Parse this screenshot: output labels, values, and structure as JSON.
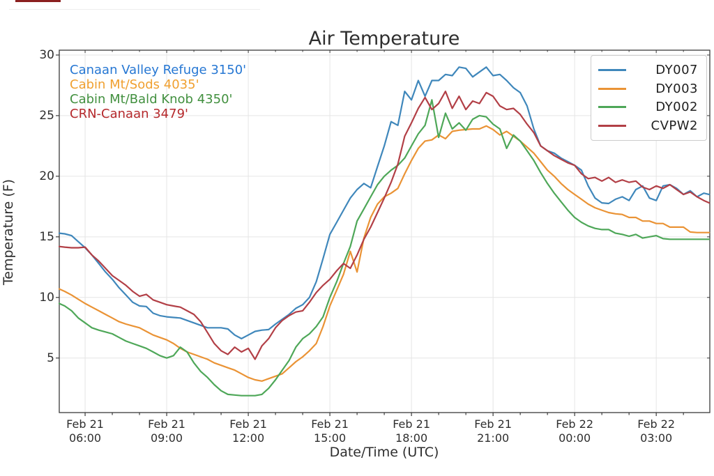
{
  "decor": {
    "top_bar_color": "#8b2020",
    "hairline_color": "#ededed"
  },
  "chart_data": {
    "type": "line",
    "title": "Air Temperature",
    "xlabel": "Date/Time (UTC)",
    "ylabel": "Temperature (F)",
    "x_unit": "hours after Feb 21 00:00 UTC",
    "xlim": [
      5.05,
      28.97
    ],
    "ylim": [
      0.5,
      30.4
    ],
    "grid": true,
    "legend_position": "upper right",
    "x": [
      5.05,
      5.25,
      5.5,
      5.75,
      6,
      6.25,
      6.5,
      6.75,
      7,
      7.25,
      7.5,
      7.75,
      8,
      8.25,
      8.5,
      8.75,
      9,
      9.25,
      9.5,
      9.75,
      10,
      10.25,
      10.5,
      10.75,
      11,
      11.25,
      11.5,
      11.75,
      12,
      12.25,
      12.5,
      12.75,
      13,
      13.25,
      13.5,
      13.75,
      14,
      14.25,
      14.5,
      14.75,
      15,
      15.25,
      15.5,
      15.75,
      16,
      16.25,
      16.5,
      16.75,
      17,
      17.25,
      17.5,
      17.75,
      18,
      18.25,
      18.5,
      18.75,
      19,
      19.25,
      19.5,
      19.75,
      20,
      20.25,
      20.5,
      20.75,
      21,
      21.25,
      21.5,
      21.75,
      22,
      22.25,
      22.5,
      22.75,
      23,
      23.25,
      23.5,
      23.75,
      24,
      24.25,
      24.5,
      24.75,
      25,
      25.25,
      25.5,
      25.75,
      26,
      26.25,
      26.5,
      26.75,
      27,
      27.25,
      27.5,
      27.75,
      28,
      28.25,
      28.5,
      28.75,
      28.95
    ],
    "series": [
      {
        "name": "DY007",
        "station": "Canaan Valley Refuge 3150'",
        "color": "#3f87bb",
        "values": [
          15.3,
          15.25,
          15.1,
          14.6,
          14.1,
          13.5,
          12.8,
          12.1,
          11.5,
          10.8,
          10.2,
          9.6,
          9.3,
          9.25,
          8.7,
          8.5,
          8.4,
          8.35,
          8.3,
          8.1,
          7.9,
          7.7,
          7.5,
          7.5,
          7.5,
          7.4,
          6.9,
          6.6,
          6.9,
          7.2,
          7.3,
          7.35,
          7.8,
          8.2,
          8.6,
          9.1,
          9.4,
          10.0,
          11.3,
          13.2,
          15.2,
          16.2,
          17.2,
          18.2,
          18.9,
          19.4,
          19.05,
          20.8,
          22.5,
          24.5,
          24.2,
          27.0,
          26.3,
          27.9,
          26.6,
          27.9,
          27.9,
          28.4,
          28.3,
          29.0,
          28.9,
          28.2,
          28.6,
          29.0,
          28.3,
          28.4,
          27.9,
          27.3,
          26.9,
          25.8,
          23.9,
          22.5,
          22.1,
          21.9,
          21.5,
          21.2,
          20.9,
          20.5,
          19.2,
          18.2,
          17.8,
          17.75,
          18.1,
          18.3,
          18.0,
          18.9,
          19.2,
          18.2,
          18.0,
          19.2,
          19.3,
          19.0,
          18.5,
          18.8,
          18.3,
          18.6,
          18.5
        ]
      },
      {
        "name": "DY003",
        "station": "Cabin Mt/Sods 4035'",
        "color": "#ea9335",
        "values": [
          10.7,
          10.5,
          10.2,
          9.85,
          9.5,
          9.2,
          8.9,
          8.6,
          8.3,
          8.0,
          7.8,
          7.65,
          7.5,
          7.2,
          6.9,
          6.7,
          6.5,
          6.2,
          5.8,
          5.5,
          5.3,
          5.1,
          4.9,
          4.6,
          4.4,
          4.2,
          4.0,
          3.7,
          3.4,
          3.2,
          3.1,
          3.3,
          3.5,
          3.7,
          4.2,
          4.7,
          5.1,
          5.6,
          6.2,
          7.6,
          9.3,
          10.6,
          11.9,
          13.8,
          12.1,
          14.9,
          16.6,
          17.7,
          18.3,
          18.6,
          19.0,
          20.2,
          21.3,
          22.3,
          22.9,
          23.0,
          23.4,
          23.1,
          23.7,
          23.8,
          23.85,
          23.9,
          23.9,
          24.15,
          23.85,
          23.4,
          23.7,
          23.3,
          22.9,
          22.4,
          21.9,
          21.2,
          20.5,
          20.0,
          19.4,
          18.9,
          18.5,
          18.1,
          17.7,
          17.4,
          17.2,
          17.0,
          16.9,
          16.85,
          16.6,
          16.6,
          16.3,
          16.3,
          16.1,
          16.1,
          15.8,
          15.8,
          15.8,
          15.4,
          15.35,
          15.35,
          15.35
        ]
      },
      {
        "name": "DY002",
        "station": "Cabin Mt/Bald Knob 4350'",
        "color": "#4ea758",
        "values": [
          9.5,
          9.3,
          8.9,
          8.3,
          7.9,
          7.5,
          7.3,
          7.15,
          7.0,
          6.7,
          6.4,
          6.2,
          6.0,
          5.8,
          5.5,
          5.2,
          5.0,
          5.2,
          5.9,
          5.5,
          4.6,
          3.9,
          3.4,
          2.8,
          2.3,
          2.0,
          1.95,
          1.9,
          1.9,
          1.9,
          2.0,
          2.5,
          3.2,
          4.0,
          4.8,
          5.9,
          6.6,
          7.0,
          7.6,
          8.4,
          10.0,
          11.3,
          12.8,
          14.2,
          16.3,
          17.3,
          18.3,
          19.3,
          20.0,
          20.5,
          20.9,
          21.5,
          22.5,
          23.5,
          24.2,
          26.3,
          23.2,
          25.2,
          23.9,
          24.4,
          23.8,
          24.7,
          25.0,
          24.9,
          24.3,
          23.9,
          22.3,
          23.4,
          22.9,
          22.1,
          21.3,
          20.3,
          19.4,
          18.6,
          17.9,
          17.2,
          16.6,
          16.2,
          15.9,
          15.7,
          15.6,
          15.6,
          15.3,
          15.2,
          15.05,
          15.2,
          14.9,
          15.0,
          15.1,
          14.85,
          14.8,
          14.8,
          14.8,
          14.8,
          14.8,
          14.8,
          14.8
        ]
      },
      {
        "name": "CVPW2",
        "station": "CRN-Canaan 3479'",
        "color": "#b23f46",
        "values": [
          14.2,
          14.15,
          14.1,
          14.1,
          14.15,
          13.5,
          13.0,
          12.4,
          11.8,
          11.4,
          11.0,
          10.5,
          10.1,
          10.25,
          9.8,
          9.6,
          9.4,
          9.3,
          9.2,
          8.9,
          8.6,
          8.0,
          7.1,
          6.2,
          5.6,
          5.3,
          5.9,
          5.5,
          5.8,
          4.9,
          6.0,
          6.6,
          7.5,
          8.1,
          8.5,
          8.8,
          8.9,
          9.6,
          10.4,
          11.0,
          11.5,
          12.2,
          12.8,
          12.4,
          13.5,
          14.8,
          15.8,
          17.0,
          18.2,
          19.5,
          21.0,
          23.3,
          24.4,
          25.6,
          26.5,
          25.5,
          26.0,
          27.0,
          25.6,
          26.6,
          25.5,
          26.2,
          26.0,
          26.9,
          26.6,
          25.8,
          25.5,
          25.6,
          25.1,
          24.3,
          23.6,
          22.5,
          22.1,
          21.7,
          21.4,
          21.1,
          20.9,
          20.2,
          19.8,
          19.9,
          19.6,
          19.9,
          19.5,
          19.7,
          19.5,
          19.6,
          19.1,
          18.9,
          19.2,
          19.0,
          19.3,
          18.9,
          18.5,
          18.7,
          18.3,
          18.0,
          17.8
        ]
      }
    ],
    "x_ticks": [
      {
        "value": 6,
        "label": "Feb 21\n06:00"
      },
      {
        "value": 9,
        "label": "Feb 21\n09:00"
      },
      {
        "value": 12,
        "label": "Feb 21\n12:00"
      },
      {
        "value": 15,
        "label": "Feb 21\n15:00"
      },
      {
        "value": 18,
        "label": "Feb 21\n18:00"
      },
      {
        "value": 21,
        "label": "Feb 21\n21:00"
      },
      {
        "value": 24,
        "label": "Feb 22\n00:00"
      },
      {
        "value": 27,
        "label": "Feb 22\n03:00"
      }
    ],
    "x_minor_tick_step": 1,
    "y_ticks": [
      5,
      10,
      15,
      20,
      25,
      30
    ],
    "legend_entries": [
      "DY007",
      "DY003",
      "DY002",
      "CVPW2"
    ]
  },
  "annotations": [
    {
      "text": "Canaan Valley Refuge 3150'",
      "color": "#2677d3"
    },
    {
      "text": "Cabin Mt/Sods 4035'",
      "color": "#f0a030"
    },
    {
      "text": "Cabin Mt/Bald Knob 4350'",
      "color": "#42903f"
    },
    {
      "text": "CRN-Canaan 3479'",
      "color": "#b5292c"
    }
  ]
}
